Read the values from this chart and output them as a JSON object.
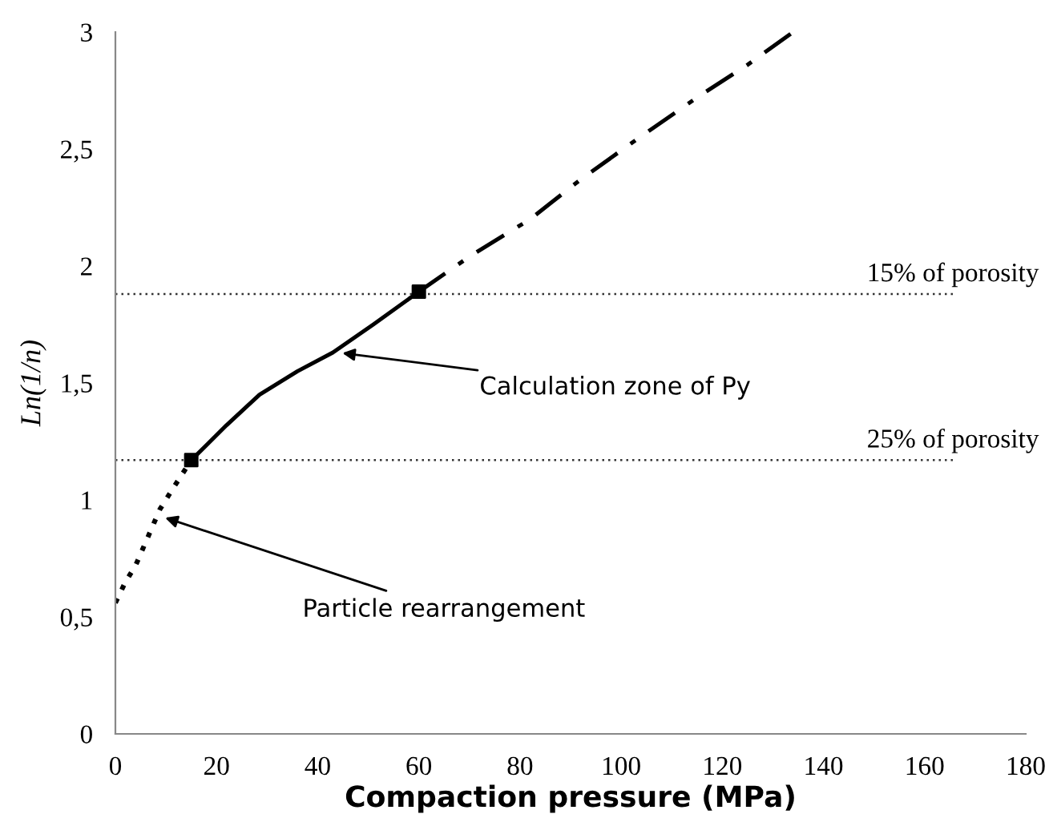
{
  "chart_data": {
    "type": "line",
    "xlabel": "Compaction pressure (MPa)",
    "ylabel": "Ln(1/n)",
    "series": [
      {
        "color": "#000000",
        "line_style": "dotted",
        "x": [
          0,
          2,
          4,
          6,
          8.8,
          12,
          15
        ],
        "values": [
          0.56,
          0.65,
          0.72,
          0.82,
          0.96,
          1.07,
          1.17
        ]
      },
      {
        "color": "#000000",
        "line_style": "solid",
        "x": [
          15,
          22,
          28.5,
          36,
          43,
          51,
          60
        ],
        "values": [
          1.17,
          1.32,
          1.45,
          1.55,
          1.63,
          1.75,
          1.89
        ]
      },
      {
        "color": "#000000",
        "line_style": "dashed",
        "x": [
          60,
          70,
          82,
          92,
          103,
          115,
          125,
          134
        ],
        "values": [
          1.89,
          2.04,
          2.2,
          2.37,
          2.54,
          2.72,
          2.86,
          3.0
        ]
      },
      {
        "type": "scatter",
        "color": "#000000",
        "marker": "square",
        "x": [
          15,
          60
        ],
        "values": [
          1.17,
          1.89
        ]
      }
    ],
    "ref_lines": [
      {
        "axis": "y",
        "value": 1.88,
        "label": "15% of porosity",
        "line_style": "dotted"
      },
      {
        "axis": "y",
        "value": 1.17,
        "label": "25% of porosity",
        "line_style": "dotted"
      }
    ],
    "annotations": [
      {
        "text": "Calculation zone of Py",
        "x": 44,
        "y": 1.63
      },
      {
        "text": "Particle rearrangement",
        "x": 9,
        "y": 0.93
      }
    ],
    "xlim": [
      0,
      180
    ],
    "xticks": [
      0,
      20,
      40,
      60,
      80,
      100,
      120,
      140,
      160,
      180
    ],
    "ylim": [
      0,
      3
    ],
    "yticks": [
      0,
      {
        "value": 0.5,
        "label": "0,5"
      },
      1,
      {
        "value": 1.5,
        "label": "1,5"
      },
      2,
      {
        "value": 2.5,
        "label": "2,5"
      },
      3
    ],
    "grid": false,
    "legend": false
  }
}
